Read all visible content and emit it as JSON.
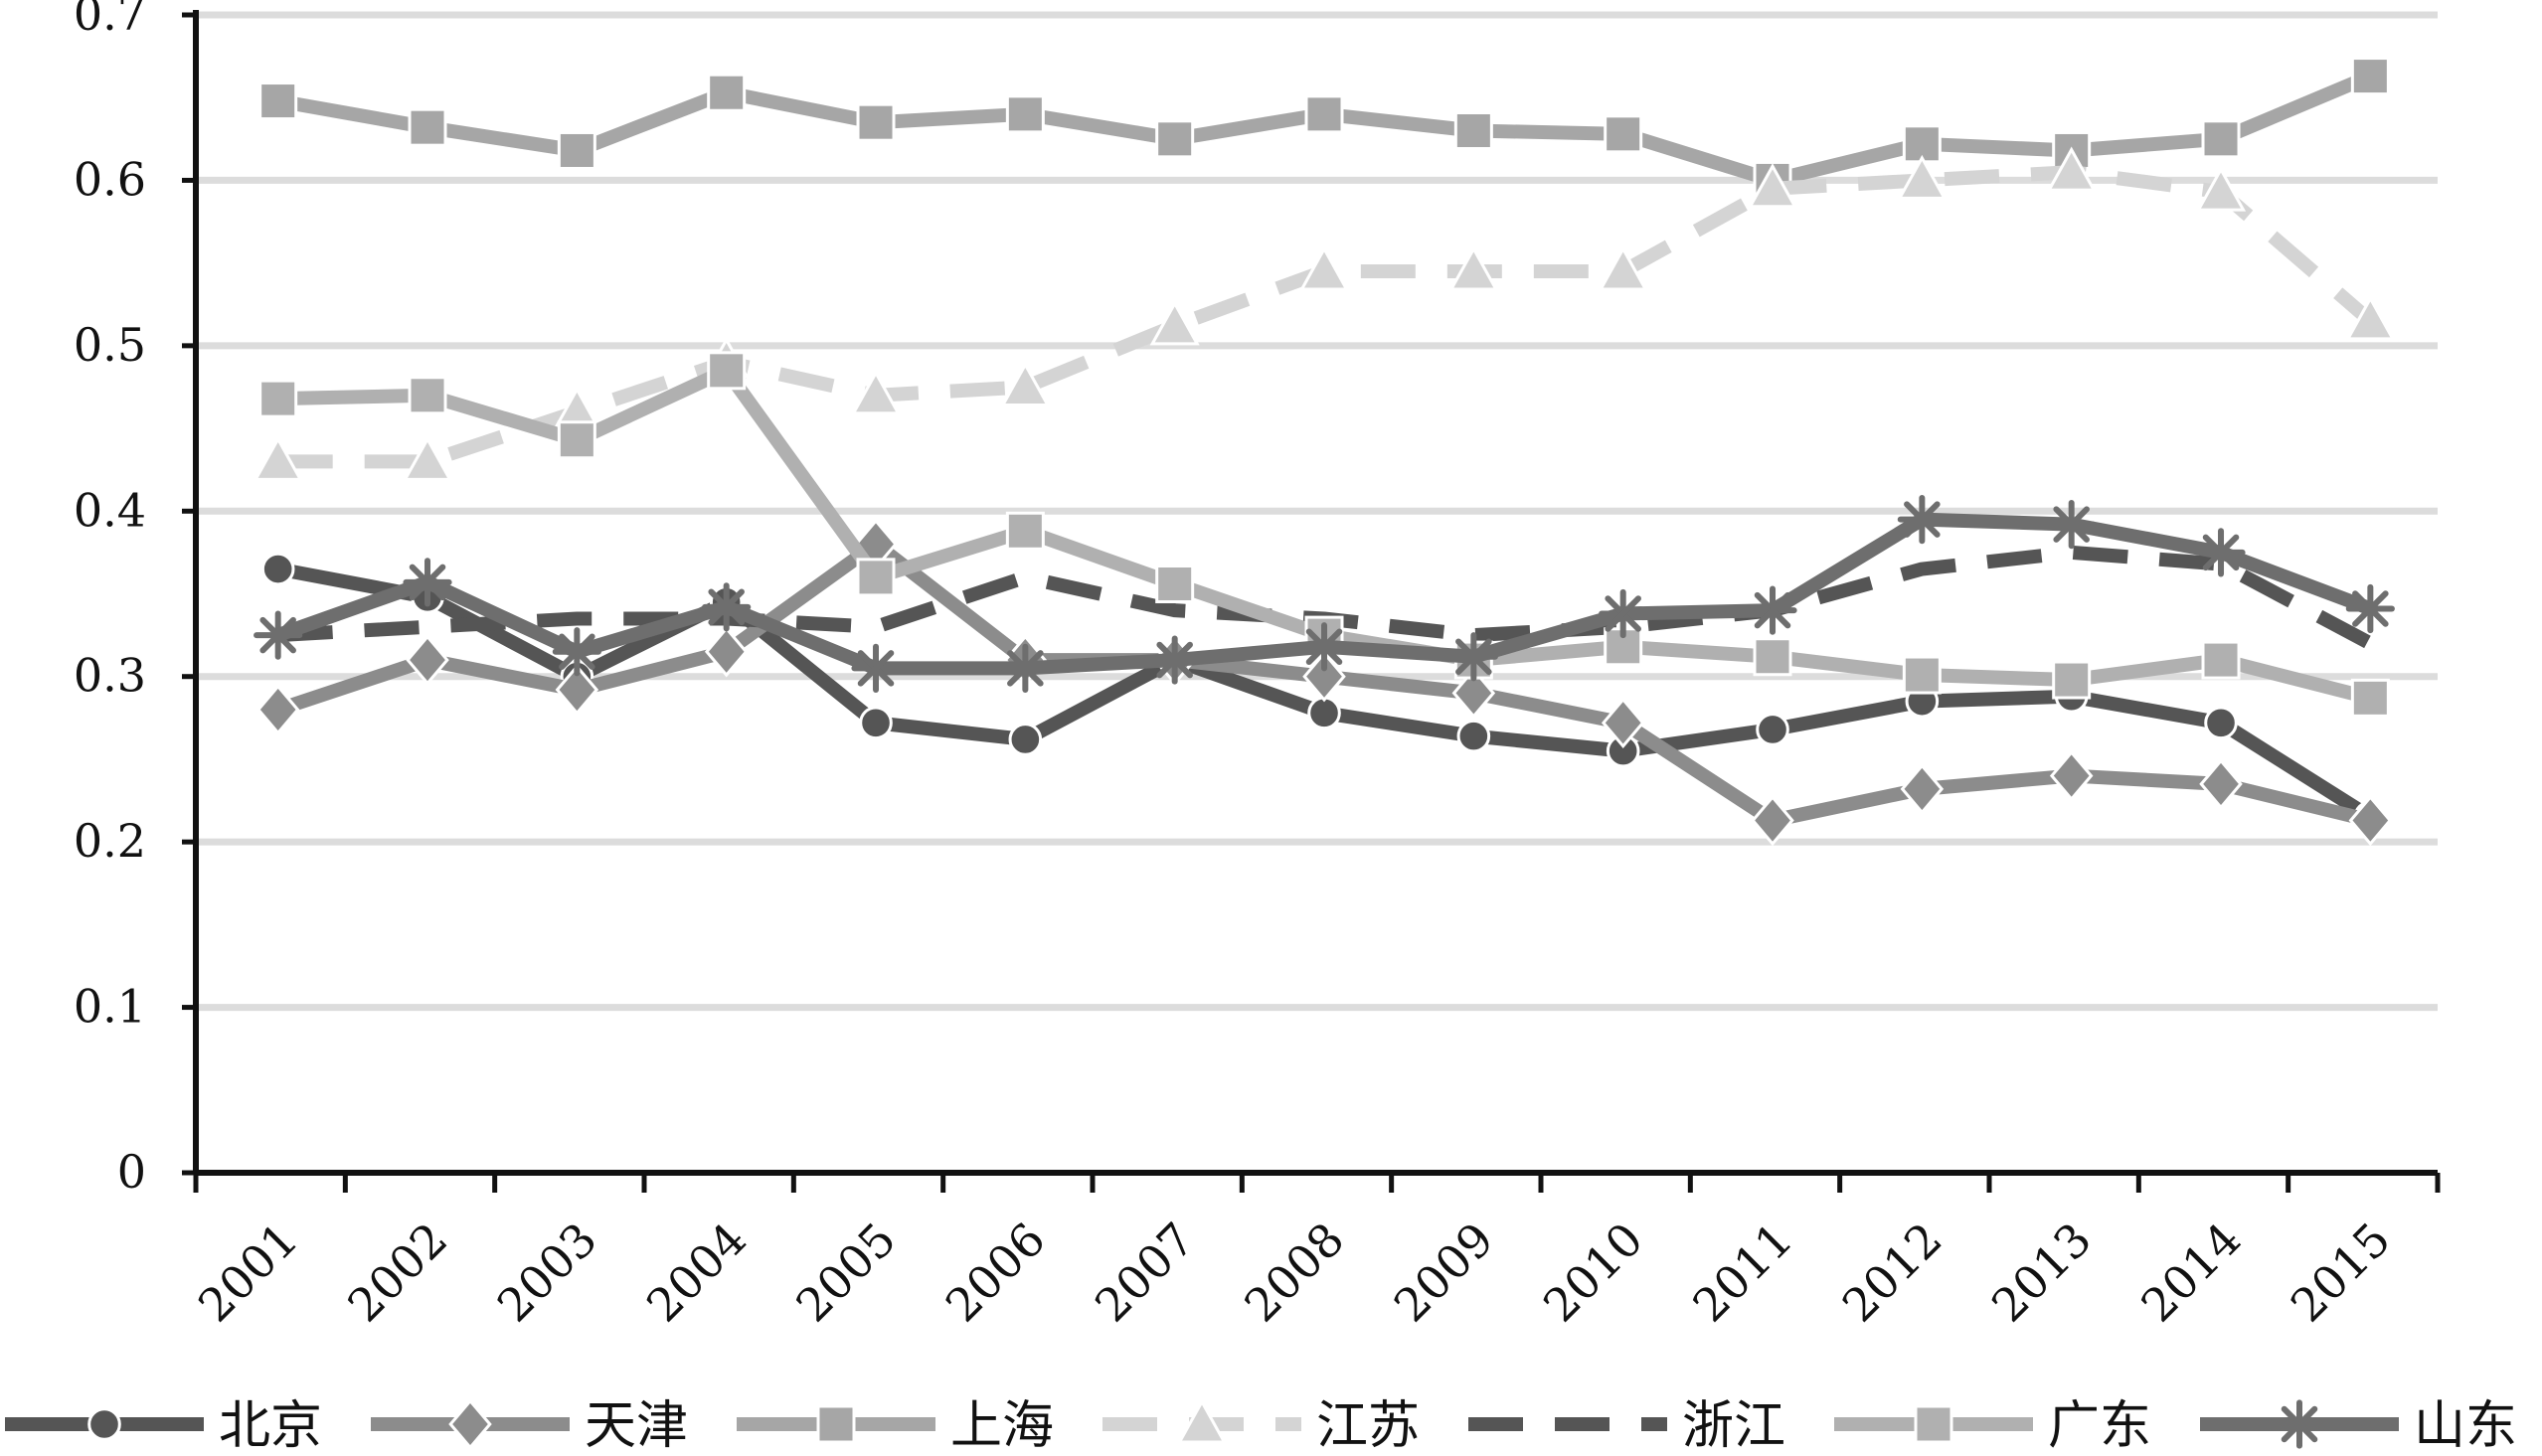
{
  "chart_data": {
    "type": "line",
    "title": "",
    "xlabel": "",
    "ylabel": "",
    "ylim": [
      0,
      0.7
    ],
    "yticks": [
      "0",
      "0.1",
      "0.2",
      "0.3",
      "0.4",
      "0.5",
      "0.6",
      "0.7"
    ],
    "grid": true,
    "legend_position": "bottom",
    "categories": [
      "2001",
      "2002",
      "2003",
      "2004",
      "2005",
      "2006",
      "2007",
      "2008",
      "2009",
      "2010",
      "2011",
      "2012",
      "2013",
      "2014",
      "2015"
    ],
    "series": [
      {
        "name": "北京",
        "color": "#555555",
        "marker": "circle",
        "dash": "solid",
        "values": [
          0.365,
          0.348,
          0.3,
          0.345,
          0.272,
          0.262,
          0.31,
          0.278,
          0.264,
          0.255,
          0.268,
          0.285,
          0.288,
          0.272,
          0.215
        ]
      },
      {
        "name": "天津",
        "color": "#8c8c8c",
        "marker": "diamond",
        "dash": "solid",
        "values": [
          0.28,
          0.31,
          0.292,
          0.315,
          0.38,
          0.31,
          0.31,
          0.3,
          0.29,
          0.272,
          0.213,
          0.232,
          0.24,
          0.235,
          0.213
        ]
      },
      {
        "name": "上海",
        "color": "#a6a6a6",
        "marker": "square",
        "dash": "solid",
        "values": [
          0.648,
          0.632,
          0.618,
          0.653,
          0.635,
          0.64,
          0.625,
          0.64,
          0.63,
          0.628,
          0.6,
          0.622,
          0.618,
          0.625,
          0.663
        ]
      },
      {
        "name": "江苏",
        "color": "#d4d4d4",
        "marker": "triangle",
        "dash": "dashed",
        "values": [
          0.43,
          0.43,
          0.46,
          0.49,
          0.47,
          0.475,
          0.512,
          0.545,
          0.545,
          0.545,
          0.595,
          0.6,
          0.605,
          0.593,
          0.515
        ]
      },
      {
        "name": "浙江",
        "color": "#555555",
        "marker": "none",
        "dash": "dashed",
        "values": [
          0.325,
          0.33,
          0.335,
          0.335,
          0.33,
          0.36,
          0.34,
          0.335,
          0.325,
          0.33,
          0.34,
          0.365,
          0.375,
          0.368,
          0.32
        ]
      },
      {
        "name": "广东",
        "color": "#b0b0b0",
        "marker": "square",
        "dash": "solid",
        "values": [
          0.468,
          0.47,
          0.443,
          0.485,
          0.36,
          0.388,
          0.356,
          0.325,
          0.31,
          0.318,
          0.312,
          0.301,
          0.298,
          0.31,
          0.287
        ]
      },
      {
        "name": "山东",
        "color": "#6e6e6e",
        "marker": "star",
        "dash": "solid",
        "values": [
          0.325,
          0.357,
          0.315,
          0.342,
          0.305,
          0.305,
          0.31,
          0.318,
          0.312,
          0.338,
          0.34,
          0.395,
          0.392,
          0.375,
          0.341
        ]
      }
    ]
  }
}
